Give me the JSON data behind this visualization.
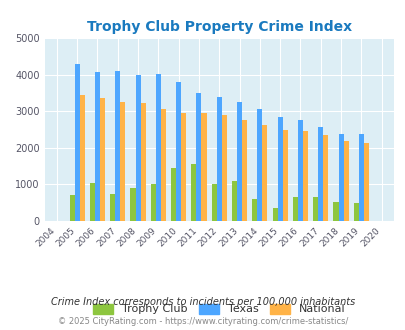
{
  "title": "Trophy Club Property Crime Index",
  "all_years": [
    2004,
    2005,
    2006,
    2007,
    2008,
    2009,
    2010,
    2011,
    2012,
    2013,
    2014,
    2015,
    2016,
    2017,
    2018,
    2019,
    2020
  ],
  "bar_years": [
    2005,
    2006,
    2007,
    2008,
    2009,
    2010,
    2011,
    2012,
    2013,
    2014,
    2015,
    2016,
    2017,
    2018,
    2019
  ],
  "trophy_club": [
    700,
    1050,
    750,
    900,
    1020,
    1440,
    1560,
    1000,
    1090,
    600,
    350,
    650,
    670,
    520,
    500
  ],
  "texas": [
    4300,
    4070,
    4100,
    4000,
    4020,
    3800,
    3500,
    3380,
    3250,
    3050,
    2840,
    2770,
    2580,
    2390,
    2390
  ],
  "national": [
    3450,
    3350,
    3250,
    3220,
    3050,
    2950,
    2950,
    2900,
    2750,
    2620,
    2490,
    2470,
    2360,
    2190,
    2130
  ],
  "ylim": [
    0,
    5000
  ],
  "yticks": [
    0,
    1000,
    2000,
    3000,
    4000,
    5000
  ],
  "bar_width": 0.25,
  "trophy_club_color": "#8dc63f",
  "texas_color": "#4da6ff",
  "national_color": "#ffb347",
  "bg_color": "#ddeef5",
  "grid_color": "#ffffff",
  "title_color": "#1a7abf",
  "footer_note": "Crime Index corresponds to incidents per 100,000 inhabitants",
  "copyright": "© 2025 CityRating.com - https://www.cityrating.com/crime-statistics/",
  "legend_labels": [
    "Trophy Club",
    "Texas",
    "National"
  ],
  "legend_text_color": "#333333",
  "footer_color": "#333333",
  "copyright_color": "#888888"
}
